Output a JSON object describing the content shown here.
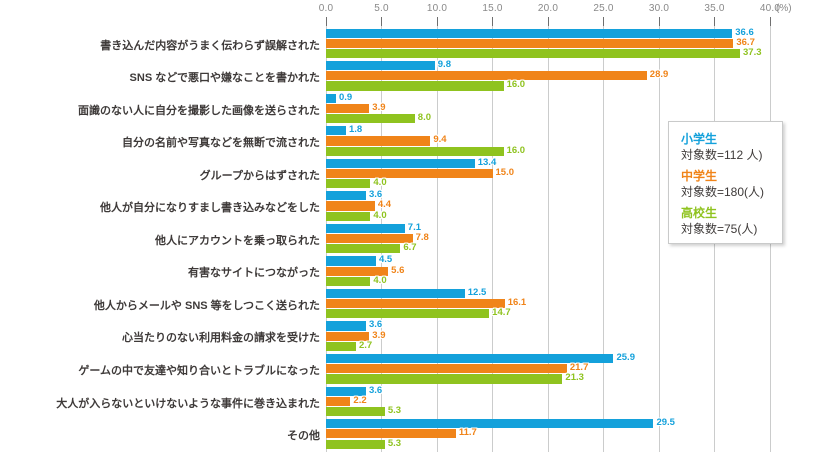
{
  "chart_data": {
    "type": "bar",
    "orientation": "horizontal",
    "unit": "%",
    "xlim": [
      0,
      40
    ],
    "x_tick_labels": [
      "0.0",
      "5.0",
      "10.0",
      "15.0",
      "20.0",
      "25.0",
      "30.0",
      "35.0",
      "40.0"
    ],
    "x_axis_unit_label": "(%)",
    "grid": true,
    "legend_position": "right-middle",
    "categories": [
      "書き込んだ内容がうまく伝わらず誤解された",
      "SNS などで悪口や嫌なことを書かれた",
      "面識のない人に自分を撮影した画像を送らされた",
      "自分の名前や写真などを無断で流された",
      "グループからはずされた",
      "他人が自分になりすまし書き込みなどをした",
      "他人にアカウントを乗っ取られた",
      "有害なサイトにつながった",
      "他人からメールや SNS 等をしつこく送られた",
      "心当たりのない利用料金の請求を受けた",
      "ゲームの中で友達や知り合いとトラブルになった",
      "大人が入らないといけないような事件に巻き込まれた",
      "その他"
    ],
    "series": [
      {
        "name": "小学生",
        "legend_note": "対象数=112 人)",
        "color": "#14a1db",
        "values": [
          36.6,
          9.8,
          0.9,
          1.8,
          13.4,
          3.6,
          7.1,
          4.5,
          12.5,
          3.6,
          25.9,
          3.6,
          29.5
        ]
      },
      {
        "name": "中学生",
        "legend_note": "対象数=180(人)",
        "color": "#f08419",
        "values": [
          36.7,
          28.9,
          3.9,
          9.4,
          15.0,
          4.4,
          7.8,
          5.6,
          16.1,
          3.9,
          21.7,
          2.2,
          11.7
        ]
      },
      {
        "name": "高校生",
        "legend_note": "対象数=75(人)",
        "color": "#8fc31f",
        "values": [
          37.3,
          16.0,
          8.0,
          16.0,
          4.0,
          4.0,
          6.7,
          4.0,
          14.7,
          2.7,
          21.3,
          5.3,
          5.3
        ]
      }
    ]
  }
}
